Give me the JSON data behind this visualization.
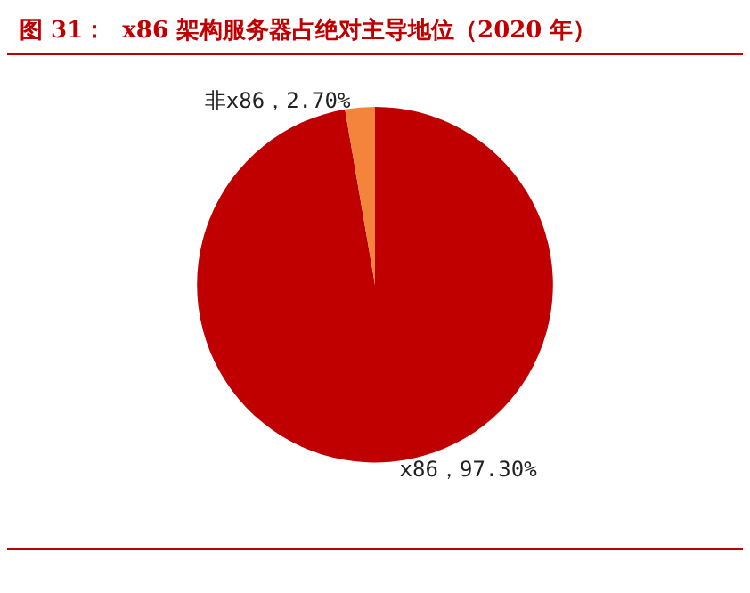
{
  "chart_data": {
    "type": "pie",
    "title": "图 31：  x86 架构服务器占绝对主导地位（2020 年）",
    "categories": [
      "x86",
      "非x86"
    ],
    "values": [
      97.3,
      2.7
    ],
    "colors": [
      "#c00000",
      "#f4843c"
    ],
    "value_labels": [
      "97.30%",
      "2.70%"
    ],
    "legend": false
  }
}
